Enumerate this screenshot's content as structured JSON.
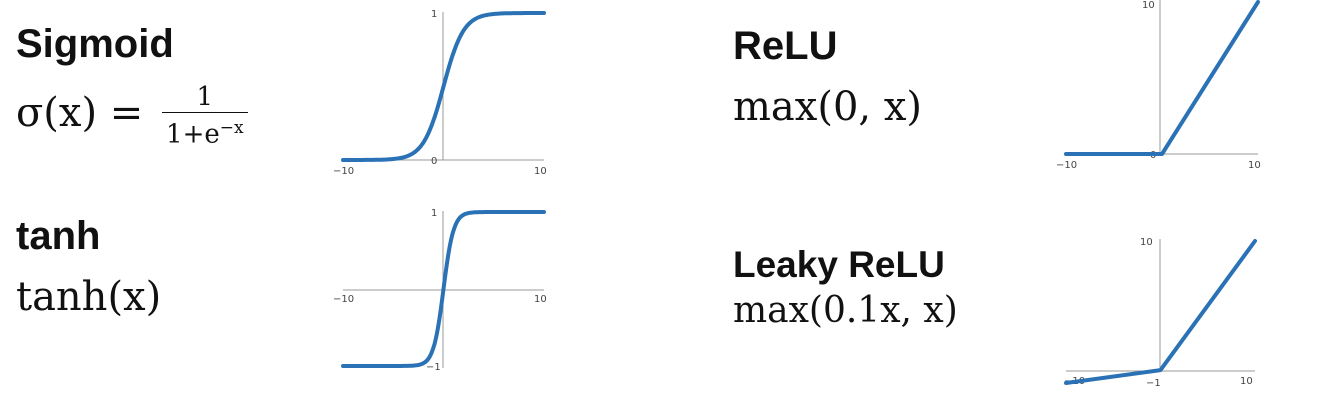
{
  "panels": [
    {
      "id": "sigmoid",
      "title": "Sigmoid",
      "formula_lhs": "σ(x) = ",
      "frac_num": "1",
      "frac_den_base": "1+e",
      "frac_den_exp": "−x"
    },
    {
      "id": "relu",
      "title": "ReLU",
      "formula": "max(0, x)"
    },
    {
      "id": "tanh",
      "title": "tanh",
      "formula": "tanh(x)"
    },
    {
      "id": "leaky",
      "title": "Leaky ReLU",
      "formula": "max(0.1x, x)"
    }
  ],
  "chart_data": [
    {
      "type": "line",
      "name": "sigmoid",
      "xlim": [
        -10,
        10
      ],
      "ylim": [
        0,
        1
      ],
      "tick_labels": {
        "x_min": "−10",
        "x_max": "10",
        "y_max": "1",
        "y_zero": "0"
      }
    },
    {
      "type": "line",
      "name": "tanh",
      "xlim": [
        -10,
        10
      ],
      "ylim": [
        -1,
        1
      ],
      "tick_labels": {
        "x_min": "−10",
        "x_max": "10",
        "y_max": "1",
        "y_min": "−1"
      }
    },
    {
      "type": "line",
      "name": "relu",
      "xlim": [
        -10,
        10
      ],
      "ylim": [
        0,
        10
      ],
      "tick_labels": {
        "x_min": "−10",
        "x_max": "10",
        "y_max": "10",
        "y_zero": "0"
      }
    },
    {
      "type": "line",
      "name": "leaky-relu",
      "xlim": [
        -10,
        10
      ],
      "ylim": [
        -1,
        10
      ],
      "tick_labels": {
        "x_min": "−10",
        "x_max": "10",
        "y_max": "10",
        "y_min": "−1"
      }
    }
  ],
  "colors": {
    "curve": "#2a72b5",
    "axis": "#999999",
    "text": "#111111"
  }
}
